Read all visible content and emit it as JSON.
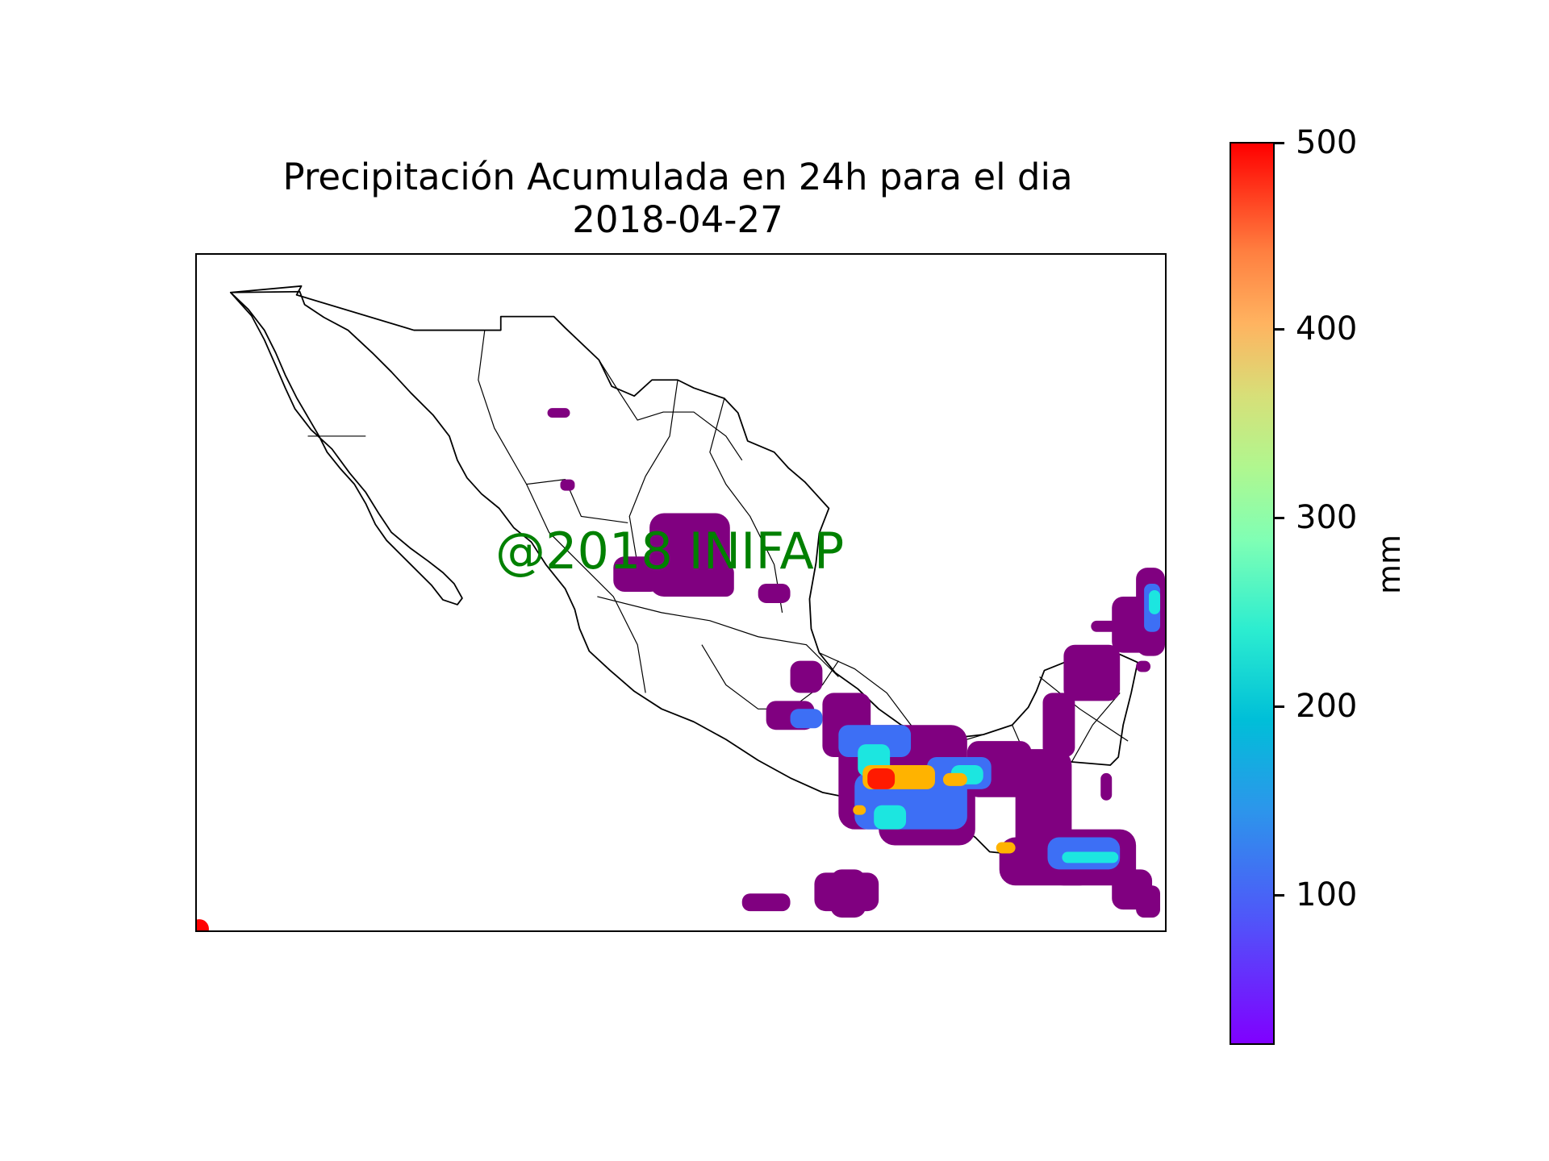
{
  "figure": {
    "title_line1": "Precipitación Acumulada en 24h para el dia",
    "title_line2": "2018-04-27",
    "watermark": "@2018 INIFAP"
  },
  "colorbar": {
    "label": "mm",
    "ticks": [
      "100",
      "200",
      "300",
      "400",
      "500"
    ],
    "range": [
      17,
      500
    ],
    "colormap": "rainbow",
    "colors": [
      "#8000ff",
      "#00bfd8",
      "#80ffb4",
      "#ffb360",
      "#ff0000"
    ]
  },
  "map": {
    "region": "Mexico",
    "rain_low_color": "#800080"
  }
}
